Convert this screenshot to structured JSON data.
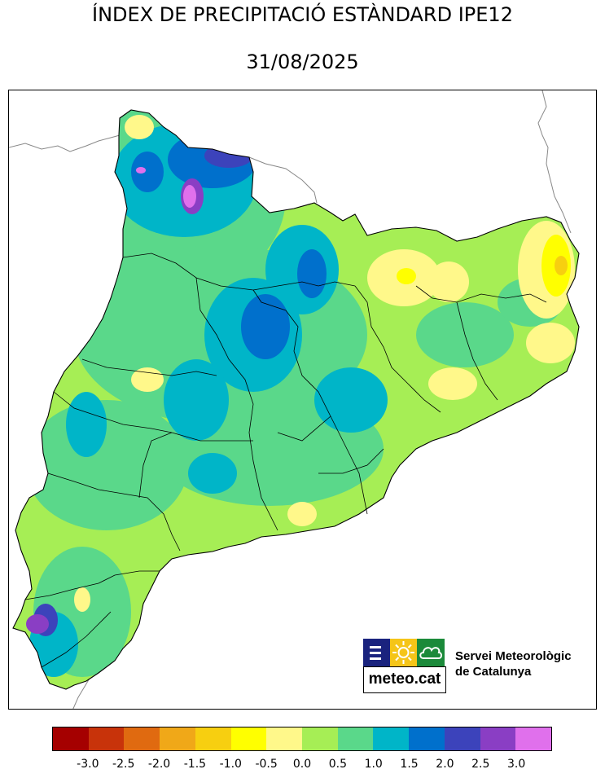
{
  "title": "ÍNDEX DE PRECIPITACIÓ ESTÀNDARD IPE12",
  "date": "31/08/2025",
  "organization": {
    "line1": "Servei Meteorològic",
    "line2": "de Catalunya",
    "logo_text": "meteo.cat",
    "logo_colors": [
      "#1a237e",
      "#f5c518",
      "#1b8a3a"
    ]
  },
  "colorbar": {
    "colors": [
      "#a50000",
      "#c8330a",
      "#e06a10",
      "#f0a818",
      "#f7cf10",
      "#ffff00",
      "#fff88a",
      "#a6ee55",
      "#5ad88a",
      "#00b5c8",
      "#0070cc",
      "#3c43bb",
      "#8a3ec4",
      "#e070ec"
    ],
    "ticks": [
      "-3.0",
      "-2.5",
      "-2.0",
      "-1.5",
      "-1.0",
      "-0.5",
      "0.0",
      "0.5",
      "1.0",
      "1.5",
      "2.0",
      "2.5",
      "3.0"
    ]
  },
  "map": {
    "region": "Catalunya",
    "base_color": "#a6ee55",
    "border_color": "#000000",
    "neighbor_border_color": "#888888"
  }
}
